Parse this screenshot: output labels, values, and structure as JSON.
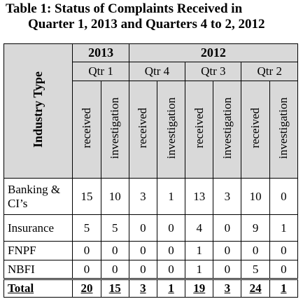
{
  "title": [
    "Table 1: Status of Complaints Received in",
    "Quarter 1, 2013 and Quarters 4 to 2, 2012"
  ],
  "table": {
    "row_header": "Industry Type",
    "years": [
      {
        "label": "2013",
        "quarters": [
          "Qtr 1"
        ]
      },
      {
        "label": "2012",
        "quarters": [
          "Qtr 4",
          "Qtr 3",
          "Qtr 2"
        ]
      }
    ],
    "measures": [
      "received",
      "investigation"
    ],
    "rows": [
      {
        "label": "Banking & CI’s",
        "values": [
          15,
          10,
          3,
          1,
          13,
          3,
          10,
          0
        ]
      },
      {
        "label": "Insurance",
        "values": [
          5,
          5,
          0,
          0,
          4,
          0,
          9,
          1
        ]
      },
      {
        "label": "FNPF",
        "values": [
          0,
          0,
          0,
          0,
          1,
          0,
          0,
          0
        ]
      },
      {
        "label": "NBFI",
        "values": [
          0,
          0,
          0,
          0,
          1,
          0,
          5,
          0
        ]
      }
    ],
    "total": {
      "label": "Total",
      "values": [
        20,
        15,
        3,
        1,
        19,
        3,
        24,
        1
      ]
    }
  }
}
